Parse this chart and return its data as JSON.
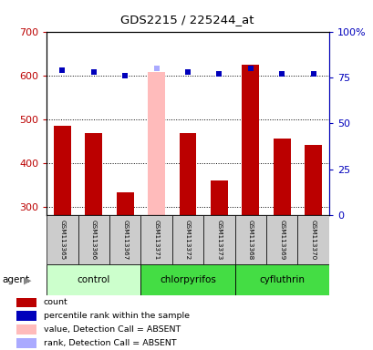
{
  "title": "GDS2215 / 225244_at",
  "samples": [
    "GSM113365",
    "GSM113366",
    "GSM113367",
    "GSM113371",
    "GSM113372",
    "GSM113373",
    "GSM113368",
    "GSM113369",
    "GSM113370"
  ],
  "counts": [
    485,
    467,
    333,
    608,
    468,
    360,
    625,
    456,
    440
  ],
  "absent_value_idx": 3,
  "percentile_ranks": [
    79,
    78,
    76,
    80,
    78,
    77,
    80,
    77,
    77
  ],
  "absent_rank_idx": 3,
  "ylim_left": [
    280,
    700
  ],
  "ylim_right": [
    0,
    100
  ],
  "bar_color_normal": "#bb0000",
  "bar_color_absent": "#ffbbbb",
  "rank_color_normal": "#0000bb",
  "rank_color_absent": "#aaaaff",
  "left_tick_labels": [
    300,
    400,
    500,
    600,
    700
  ],
  "right_tick_labels": [
    0,
    25,
    50,
    75,
    100
  ],
  "right_tick_str": [
    "0",
    "25",
    "50",
    "75",
    "100%"
  ],
  "group_names": [
    "control",
    "chlorpyrifos",
    "cyfluthrin"
  ],
  "group_ranges": [
    [
      0,
      2
    ],
    [
      3,
      5
    ],
    [
      6,
      8
    ]
  ],
  "group_colors": [
    "#ccffcc",
    "#44dd44",
    "#44dd44"
  ],
  "legend_items": [
    {
      "label": "count",
      "color": "#bb0000"
    },
    {
      "label": "percentile rank within the sample",
      "color": "#0000bb"
    },
    {
      "label": "value, Detection Call = ABSENT",
      "color": "#ffbbbb"
    },
    {
      "label": "rank, Detection Call = ABSENT",
      "color": "#aaaaff"
    }
  ]
}
